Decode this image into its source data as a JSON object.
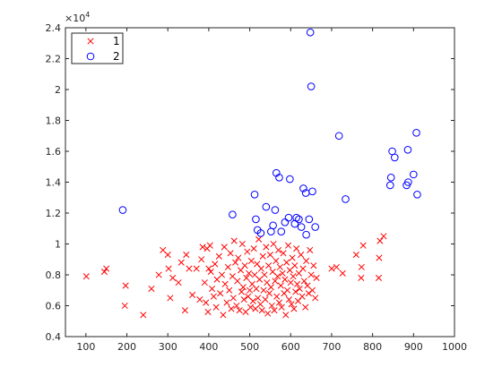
{
  "chart_data": {
    "type": "scatter",
    "x_ticks": [
      "100",
      "200",
      "300",
      "400",
      "500",
      "600",
      "700",
      "800",
      "900",
      "1000"
    ],
    "y_ticks": [
      "0.4",
      "0.6",
      "0.8",
      "1",
      "1.2",
      "1.4",
      "1.6",
      "1.8",
      "2",
      "2.2",
      "2.4"
    ],
    "y_exponent_base": "×10",
    "y_exponent_power": "4",
    "xlim": [
      50,
      1000
    ],
    "ylim": [
      4000,
      24000
    ],
    "grid": false,
    "legend_position": "top-left",
    "series": [
      {
        "name": "1",
        "marker": "x",
        "color": "#ff0000",
        "points": [
          [
            101,
            7900
          ],
          [
            145,
            8200
          ],
          [
            150,
            8400
          ],
          [
            195,
            6000
          ],
          [
            197,
            7300
          ],
          [
            240,
            5400
          ],
          [
            260,
            7100
          ],
          [
            278,
            8000
          ],
          [
            288,
            9600
          ],
          [
            300,
            9300
          ],
          [
            302,
            8400
          ],
          [
            306,
            6500
          ],
          [
            312,
            7800
          ],
          [
            326,
            7500
          ],
          [
            333,
            8800
          ],
          [
            342,
            5700
          ],
          [
            345,
            9300
          ],
          [
            352,
            8400
          ],
          [
            360,
            6700
          ],
          [
            370,
            8400
          ],
          [
            378,
            6400
          ],
          [
            382,
            9000
          ],
          [
            385,
            9800
          ],
          [
            390,
            7500
          ],
          [
            393,
            6200
          ],
          [
            396,
            9700
          ],
          [
            398,
            5600
          ],
          [
            400,
            8400
          ],
          [
            403,
            9900
          ],
          [
            405,
            8200
          ],
          [
            408,
            7100
          ],
          [
            412,
            6600
          ],
          [
            415,
            8700
          ],
          [
            418,
            5900
          ],
          [
            420,
            7700
          ],
          [
            425,
            9200
          ],
          [
            428,
            6800
          ],
          [
            432,
            8000
          ],
          [
            435,
            5400
          ],
          [
            438,
            9800
          ],
          [
            440,
            7400
          ],
          [
            444,
            6200
          ],
          [
            447,
            8500
          ],
          [
            450,
            7000
          ],
          [
            453,
            9400
          ],
          [
            455,
            5800
          ],
          [
            458,
            7900
          ],
          [
            460,
            6500
          ],
          [
            462,
            10200
          ],
          [
            465,
            8800
          ],
          [
            468,
            6000
          ],
          [
            470,
            7600
          ],
          [
            472,
            9100
          ],
          [
            475,
            5700
          ],
          [
            478,
            8300
          ],
          [
            480,
            6900
          ],
          [
            482,
            10000
          ],
          [
            484,
            7200
          ],
          [
            486,
            6400
          ],
          [
            488,
            8600
          ],
          [
            490,
            5600
          ],
          [
            492,
            7800
          ],
          [
            494,
            9500
          ],
          [
            496,
            6600
          ],
          [
            498,
            8100
          ],
          [
            500,
            7000
          ],
          [
            502,
            5900
          ],
          [
            504,
            8900
          ],
          [
            506,
            7400
          ],
          [
            508,
            6300
          ],
          [
            510,
            9700
          ],
          [
            512,
            8000
          ],
          [
            514,
            5800
          ],
          [
            516,
            7100
          ],
          [
            518,
            8700
          ],
          [
            520,
            6500
          ],
          [
            522,
            10300
          ],
          [
            524,
            7700
          ],
          [
            526,
            6100
          ],
          [
            528,
            8400
          ],
          [
            530,
            5700
          ],
          [
            532,
            9200
          ],
          [
            534,
            7000
          ],
          [
            536,
            8000
          ],
          [
            538,
            6400
          ],
          [
            540,
            9800
          ],
          [
            542,
            7500
          ],
          [
            544,
            5500
          ],
          [
            546,
            8600
          ],
          [
            548,
            6800
          ],
          [
            550,
            9300
          ],
          [
            552,
            7200
          ],
          [
            554,
            6000
          ],
          [
            556,
            8200
          ],
          [
            558,
            10000
          ],
          [
            560,
            5700
          ],
          [
            562,
            7600
          ],
          [
            564,
            8900
          ],
          [
            566,
            6600
          ],
          [
            568,
            7900
          ],
          [
            570,
            9600
          ],
          [
            572,
            6200
          ],
          [
            574,
            8500
          ],
          [
            576,
            7300
          ],
          [
            578,
            5900
          ],
          [
            580,
            8100
          ],
          [
            582,
            9400
          ],
          [
            584,
            6800
          ],
          [
            586,
            7700
          ],
          [
            588,
            5400
          ],
          [
            590,
            8800
          ],
          [
            592,
            7000
          ],
          [
            594,
            9900
          ],
          [
            596,
            6400
          ],
          [
            598,
            8300
          ],
          [
            600,
            7500
          ],
          [
            602,
            6100
          ],
          [
            604,
            9100
          ],
          [
            606,
            7900
          ],
          [
            608,
            5800
          ],
          [
            610,
            8600
          ],
          [
            612,
            6900
          ],
          [
            614,
            9700
          ],
          [
            616,
            7400
          ],
          [
            618,
            6300
          ],
          [
            620,
            8100
          ],
          [
            622,
            7100
          ],
          [
            625,
            9300
          ],
          [
            628,
            6600
          ],
          [
            630,
            8400
          ],
          [
            633,
            7600
          ],
          [
            636,
            5900
          ],
          [
            638,
            8900
          ],
          [
            641,
            7300
          ],
          [
            644,
            6800
          ],
          [
            647,
            9600
          ],
          [
            650,
            8000
          ],
          [
            653,
            7000
          ],
          [
            656,
            8600
          ],
          [
            660,
            6500
          ],
          [
            663,
            7800
          ],
          [
            700,
            8400
          ],
          [
            712,
            8500
          ],
          [
            727,
            8100
          ],
          [
            760,
            9300
          ],
          [
            772,
            7800
          ],
          [
            773,
            8500
          ],
          [
            777,
            9900
          ],
          [
            815,
            7800
          ],
          [
            816,
            9100
          ],
          [
            818,
            10200
          ],
          [
            827,
            10500
          ]
        ]
      },
      {
        "name": "2",
        "marker": "o",
        "color": "#0000ff",
        "points": [
          [
            190,
            12200
          ],
          [
            458,
            11900
          ],
          [
            512,
            13200
          ],
          [
            515,
            11600
          ],
          [
            519,
            10900
          ],
          [
            527,
            10700
          ],
          [
            540,
            12400
          ],
          [
            552,
            10800
          ],
          [
            557,
            11200
          ],
          [
            562,
            12200
          ],
          [
            565,
            14600
          ],
          [
            572,
            14300
          ],
          [
            577,
            10800
          ],
          [
            586,
            11400
          ],
          [
            595,
            11700
          ],
          [
            598,
            14200
          ],
          [
            610,
            11300
          ],
          [
            614,
            11700
          ],
          [
            620,
            11600
          ],
          [
            626,
            11100
          ],
          [
            631,
            13600
          ],
          [
            637,
            13300
          ],
          [
            638,
            10600
          ],
          [
            645,
            11600
          ],
          [
            648,
            23700
          ],
          [
            650,
            20200
          ],
          [
            653,
            13400
          ],
          [
            660,
            11100
          ],
          [
            718,
            17000
          ],
          [
            734,
            12900
          ],
          [
            843,
            13800
          ],
          [
            845,
            14300
          ],
          [
            848,
            16000
          ],
          [
            854,
            15600
          ],
          [
            883,
            13800
          ],
          [
            886,
            16100
          ],
          [
            887,
            14000
          ],
          [
            900,
            14500
          ],
          [
            907,
            17200
          ],
          [
            909,
            13200
          ]
        ]
      }
    ]
  }
}
